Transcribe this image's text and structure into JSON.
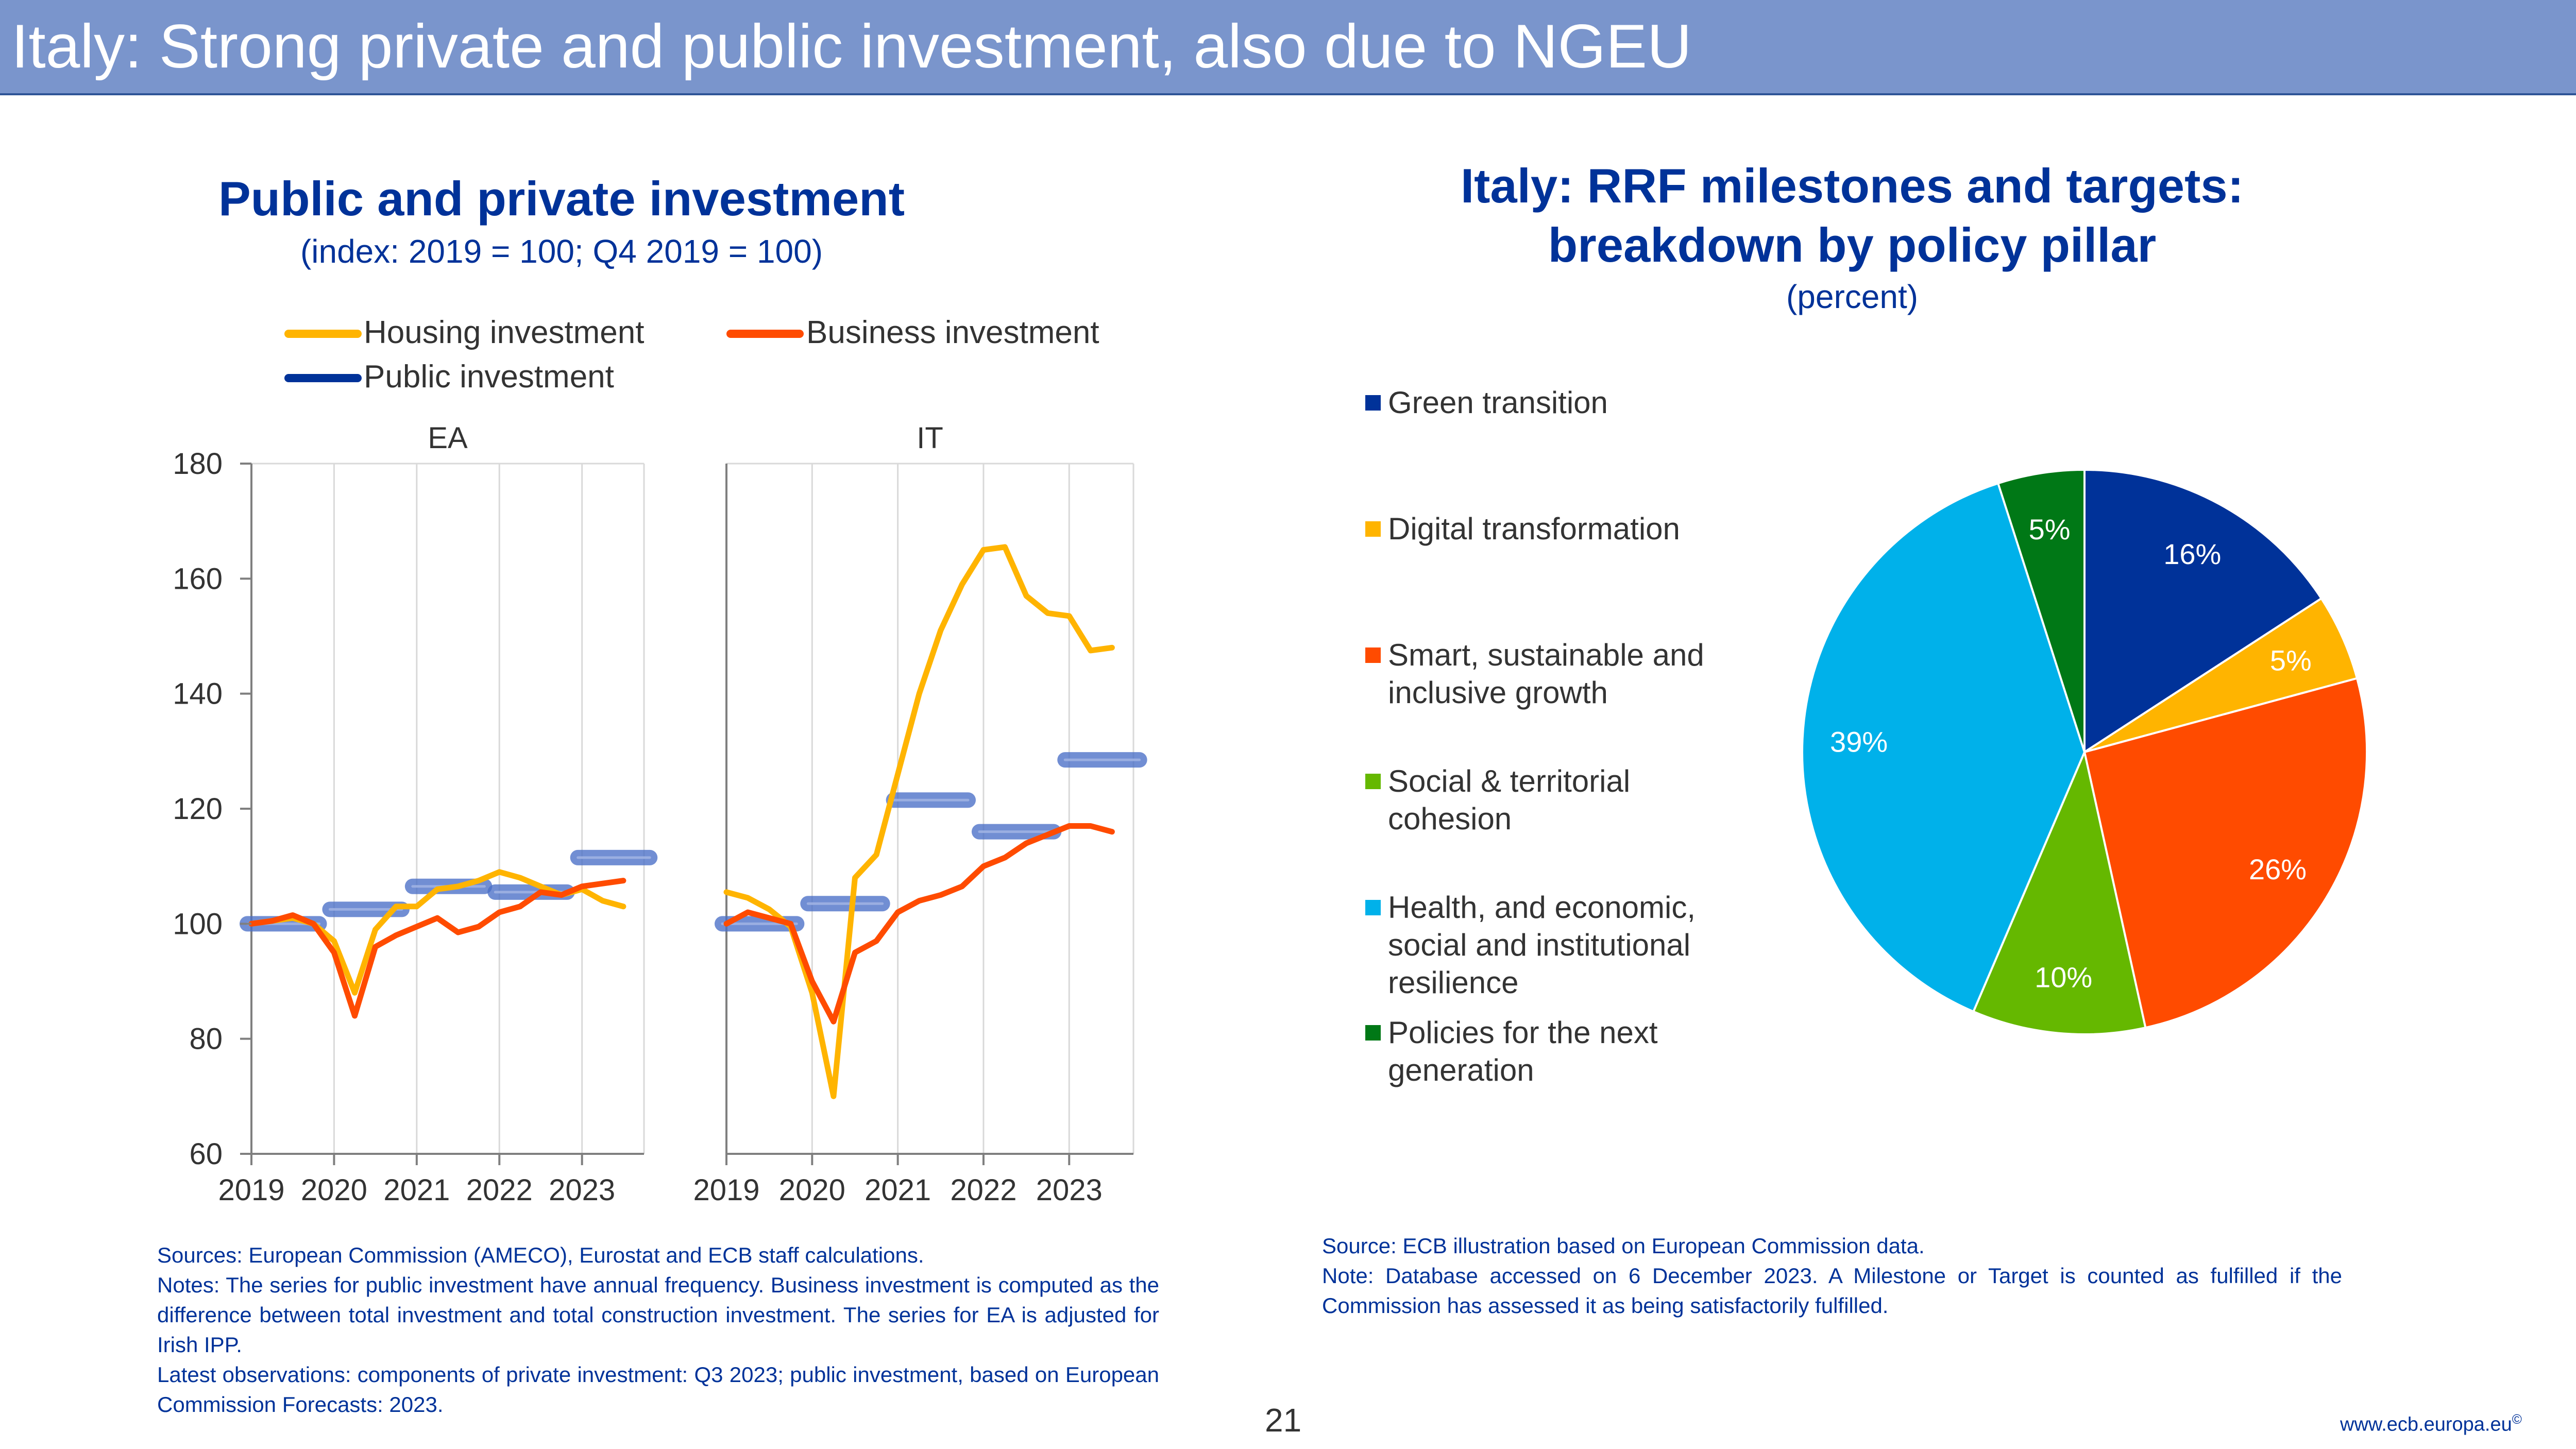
{
  "slide": {
    "title": "Italy: Strong private and public investment, also due to NGEU",
    "page_number": "21",
    "footer_url": "www.ecb.europa.eu",
    "footer_mark": "©"
  },
  "left_chart": {
    "title": "Public and private investment",
    "subtitle": "(index: 2019 = 100; Q4 2019 = 100)",
    "notes": [
      "Sources: European Commission (AMECO), Eurostat and ECB staff calculations.",
      "Notes: The series for public investment have annual frequency. Business investment is computed as the difference between total investment and total construction investment. The series for EA is adjusted for Irish IPP.",
      "Latest observations: components of private investment: Q3 2023; public investment, based on European Commission Forecasts: 2023."
    ]
  },
  "right_chart": {
    "title_line1": "Italy: RRF milestones and targets:",
    "title_line2": "breakdown by policy pillar",
    "subtitle": "(percent)",
    "notes": [
      "Source: ECB illustration based on European Commission data.",
      "Note: Database accessed on 6 December 2023. A Milestone or Target is counted as fulfilled if the Commission has assessed it as being satisfactorily fulfilled."
    ]
  },
  "chart_data": [
    {
      "type": "line",
      "title": "Public and private investment",
      "subtitle": "(index: 2019 = 100; Q4 2019 = 100)",
      "ylim": [
        60,
        180
      ],
      "yticks": [
        "60",
        "80",
        "100",
        "120",
        "140",
        "160",
        "180"
      ],
      "xticks": [
        "2019",
        "2020",
        "2021",
        "2022",
        "2023"
      ],
      "grid": true,
      "legend_position": "top",
      "colors": {
        "housing": "#ffb400",
        "business": "#ff4b00",
        "public": "#003299"
      },
      "legend": [
        "Housing investment",
        "Business investment",
        "Public investment"
      ],
      "x_quarters": [
        "2019Q1",
        "2019Q2",
        "2019Q3",
        "2019Q4",
        "2020Q1",
        "2020Q2",
        "2020Q3",
        "2020Q4",
        "2021Q1",
        "2021Q2",
        "2021Q3",
        "2021Q4",
        "2022Q1",
        "2022Q2",
        "2022Q3",
        "2022Q4",
        "2023Q1",
        "2023Q2",
        "2023Q3"
      ],
      "panels": [
        {
          "label": "EA",
          "series": [
            {
              "name": "Housing investment",
              "values": [
                100,
                100.5,
                101,
                100,
                97,
                88,
                99,
                103,
                103,
                106,
                106.5,
                107.5,
                109,
                108,
                106.5,
                105,
                106,
                104,
                103
              ]
            },
            {
              "name": "Business investment",
              "values": [
                100,
                100.5,
                101.5,
                100,
                95,
                84,
                96,
                98,
                99.5,
                101,
                98.5,
                99.5,
                102,
                103,
                105.5,
                105,
                106.5,
                107,
                107.5
              ]
            },
            {
              "name": "Public investment",
              "annual": [
                {
                  "year": "2019",
                  "value": 100
                },
                {
                  "year": "2020",
                  "value": 102.5
                },
                {
                  "year": "2021",
                  "value": 106.5
                },
                {
                  "year": "2022",
                  "value": 105.5
                },
                {
                  "year": "2023",
                  "value": 111.5
                }
              ]
            }
          ]
        },
        {
          "label": "IT",
          "series": [
            {
              "name": "Housing investment",
              "values": [
                105.5,
                104.5,
                102.5,
                99.5,
                88,
                70,
                108,
                112,
                126,
                140,
                151,
                159,
                165,
                165.5,
                157,
                154,
                153.5,
                147.5,
                148
              ]
            },
            {
              "name": "Business investment",
              "values": [
                100,
                102,
                101,
                100,
                90,
                83,
                95,
                97,
                102,
                104,
                105,
                106.5,
                110,
                111.5,
                114,
                115.5,
                117,
                117,
                116
              ]
            },
            {
              "name": "Public investment",
              "annual": [
                {
                  "year": "2019",
                  "value": 100
                },
                {
                  "year": "2020",
                  "value": 103.5
                },
                {
                  "year": "2021",
                  "value": 121.5
                },
                {
                  "year": "2022",
                  "value": 116
                },
                {
                  "year": "2023",
                  "value": 128.5
                }
              ]
            }
          ]
        }
      ]
    },
    {
      "type": "pie",
      "title": "Italy: RRF milestones and targets: breakdown by policy pillar",
      "subtitle": "(percent)",
      "legend_position": "left",
      "slices": [
        {
          "name": "Green transition",
          "value": 16,
          "label": "16%",
          "color": "#003299"
        },
        {
          "name": "Digital transformation",
          "value": 5,
          "label": "5%",
          "color": "#ffb400"
        },
        {
          "name": "Smart, sustainable and inclusive growth",
          "value": 26,
          "label": "26%",
          "color": "#ff4b00"
        },
        {
          "name": "Social & territorial cohesion",
          "value": 10,
          "label": "10%",
          "color": "#65b800"
        },
        {
          "name": "Health, and economic, social and institutional resilience",
          "value": 39,
          "label": "39%",
          "color": "#00b1ea"
        },
        {
          "name": "Policies for the next generation",
          "value": 5,
          "label": "5%",
          "color": "#007816"
        }
      ],
      "legend_lines": [
        [
          "Green transition"
        ],
        [
          "Digital transformation"
        ],
        [
          "Smart, sustainable and",
          "inclusive growth"
        ],
        [
          "Social & territorial",
          "cohesion"
        ],
        [
          "Health, and economic,",
          "social and institutional",
          "resilience"
        ],
        [
          "Policies for the next",
          "generation"
        ]
      ]
    }
  ]
}
